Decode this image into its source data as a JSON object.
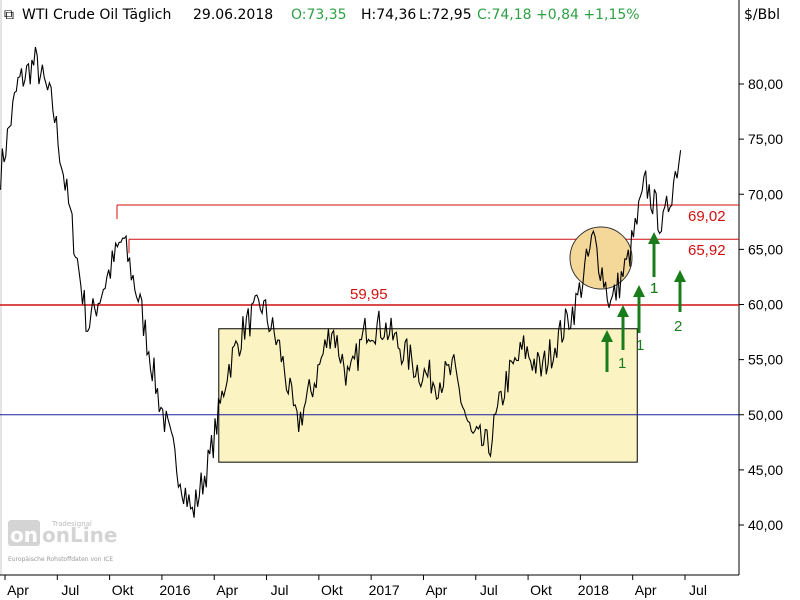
{
  "header": {
    "symbol": "WTI Crude Oil Täglich",
    "date": "29.06.2018",
    "open": "O:73,35",
    "high": "H:74,36",
    "low": "L:72,95",
    "close": "C:74,18 +0,84 +1,15%",
    "unit": "$/Bbl"
  },
  "colors": {
    "price_line": "#000000",
    "resistance": "#d01010",
    "support": "#1a1aa0",
    "range_fill": "#fbf4c2",
    "circle_fill": "#f3d89a",
    "arrow": "#1b7c1b",
    "ohlc_green": "#2ea043"
  },
  "watermark": {
    "brand": "onLine",
    "tag": "Tradesignal",
    "source": "Europäische Rohstoffdaten von ICE"
  },
  "chart_data": {
    "type": "line",
    "title": "WTI Crude Oil Täglich",
    "ylabel": "$/Bbl",
    "ylim": [
      35.5,
      87.5
    ],
    "yticks": [
      "80,00",
      "75,00",
      "70,00",
      "65,00",
      "60,00",
      "55,00",
      "50,00",
      "45,00",
      "40,00"
    ],
    "ytick_values": [
      80,
      75,
      70,
      65,
      60,
      55,
      50,
      45,
      40
    ],
    "xticks": [
      "Apr",
      "Jul",
      "Okt",
      "2016",
      "Apr",
      "Jul",
      "Okt",
      "2017",
      "Apr",
      "Jul",
      "Okt",
      "2018",
      "Apr",
      "Jul"
    ],
    "xtick_dates": [
      "2015-04",
      "2015-07",
      "2015-10",
      "2016-01",
      "2016-04",
      "2016-07",
      "2016-10",
      "2017-01",
      "2017-04",
      "2017-07",
      "2017-10",
      "2018-01",
      "2018-04",
      "2018-07"
    ],
    "x": [
      "2015-03",
      "2015-04",
      "2015-05",
      "2015-06",
      "2015-07",
      "2015-08",
      "2015-09",
      "2015-10",
      "2015-11",
      "2015-12",
      "2016-01",
      "2016-02",
      "2016-03",
      "2016-04",
      "2016-05",
      "2016-06",
      "2016-07",
      "2016-08",
      "2016-09",
      "2016-10",
      "2016-11",
      "2016-12",
      "2017-01",
      "2017-02",
      "2017-03",
      "2017-04",
      "2017-05",
      "2017-06",
      "2017-07",
      "2017-08",
      "2017-09",
      "2017-10",
      "2017-11",
      "2017-12",
      "2018-01",
      "2018-02",
      "2018-03",
      "2018-04",
      "2018-05",
      "2018-06"
    ],
    "series": [
      {
        "values": [
          72,
          80,
          82,
          78,
          68,
          58,
          62,
          66,
          60,
          52,
          46,
          41,
          46,
          54,
          58,
          60,
          56,
          49,
          53,
          58,
          53,
          58,
          58,
          56,
          54,
          53,
          54,
          48,
          47,
          53,
          56,
          54,
          57,
          60,
          66,
          60,
          64,
          71,
          67,
          74
        ]
      }
    ],
    "levels": [
      {
        "label": "69,02",
        "value": 69.02,
        "kind": "resistance"
      },
      {
        "label": "65,92",
        "value": 65.92,
        "kind": "resistance"
      },
      {
        "label": "59,95",
        "value": 59.95,
        "kind": "resistance"
      },
      {
        "label": "",
        "value": 50.0,
        "kind": "support"
      }
    ],
    "range_box": {
      "y_from": 45.7,
      "y_to": 57.8,
      "x_from": "2016-03",
      "x_to": "2018-03"
    },
    "annotations": [
      "1",
      "1",
      "1",
      "1",
      "2"
    ],
    "grid": false,
    "legend": "none"
  }
}
